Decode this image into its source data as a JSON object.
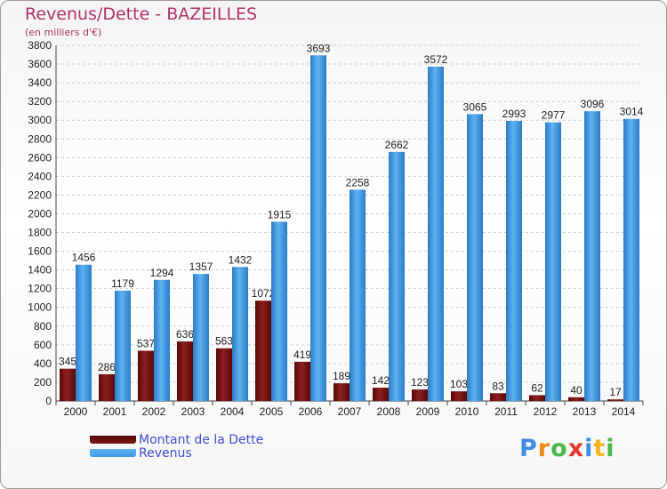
{
  "chart_data": {
    "type": "bar",
    "title": "Revenus/Dette - BAZEILLES",
    "subtitle": "(en milliers d'€)",
    "xlabel": "",
    "ylabel": "",
    "ylim": [
      0,
      3800
    ],
    "ytick_step": 200,
    "grid": true,
    "legend_position": "bottom-left",
    "categories": [
      "2000",
      "2001",
      "2002",
      "2003",
      "2004",
      "2005",
      "2006",
      "2007",
      "2008",
      "2009",
      "2010",
      "2011",
      "2012",
      "2013",
      "2014"
    ],
    "series": [
      {
        "name": "Montant de la Dette",
        "color": "#7b1616",
        "values": [
          345,
          286,
          537,
          636,
          563,
          1072,
          419,
          189,
          142,
          123,
          103,
          83,
          62,
          40,
          17
        ],
        "labels": [
          "345",
          "286",
          "537",
          "636",
          "563",
          "1072",
          "419",
          "189",
          "142",
          "123",
          "103",
          "83",
          "62",
          "40",
          "17"
        ]
      },
      {
        "name": "Revenus",
        "color": "#3f9ae4",
        "values": [
          1456,
          1179,
          1294,
          1357,
          1432,
          1915,
          3693,
          2258,
          2662,
          3572,
          3065,
          2993,
          2977,
          3096,
          3014
        ],
        "labels": [
          "1456",
          "1179",
          "1294",
          "1357",
          "1432",
          "1915",
          "3693",
          "2258",
          "2662",
          "3572",
          "3065",
          "2993",
          "2977",
          "3096",
          "3014"
        ]
      }
    ]
  },
  "logo": {
    "text": "Proxiti"
  }
}
